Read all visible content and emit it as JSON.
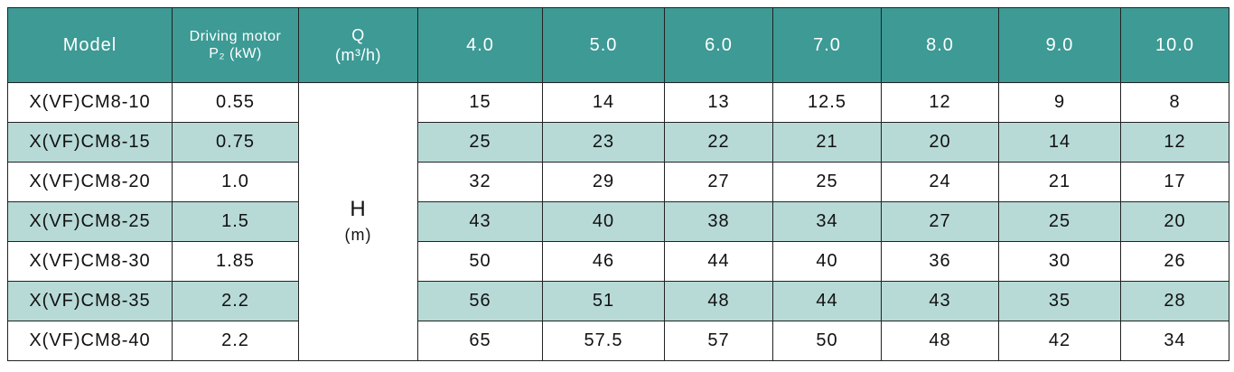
{
  "table": {
    "header": {
      "model": "Model",
      "motor": [
        "Driving motor",
        "P₂ (kW)"
      ],
      "flow": [
        "Q",
        "(m³/h)"
      ],
      "flows": [
        "4.0",
        "5.0",
        "6.0",
        "7.0",
        "8.0",
        "9.0",
        "10.0"
      ]
    },
    "head_label": [
      "H",
      "(m)"
    ],
    "rows": [
      {
        "model": "X(VF)CM8-10",
        "power": "0.55",
        "heads": [
          "15",
          "14",
          "13",
          "12.5",
          "12",
          "9",
          "8"
        ]
      },
      {
        "model": "X(VF)CM8-15",
        "power": "0.75",
        "heads": [
          "25",
          "23",
          "22",
          "21",
          "20",
          "14",
          "12"
        ]
      },
      {
        "model": "X(VF)CM8-20",
        "power": "1.0",
        "heads": [
          "32",
          "29",
          "27",
          "25",
          "24",
          "21",
          "17"
        ]
      },
      {
        "model": "X(VF)CM8-25",
        "power": "1.5",
        "heads": [
          "43",
          "40",
          "38",
          "34",
          "27",
          "25",
          "20"
        ]
      },
      {
        "model": "X(VF)CM8-30",
        "power": "1.85",
        "heads": [
          "50",
          "46",
          "44",
          "40",
          "36",
          "30",
          "26"
        ]
      },
      {
        "model": "X(VF)CM8-35",
        "power": "2.2",
        "heads": [
          "56",
          "51",
          "48",
          "44",
          "43",
          "35",
          "28"
        ]
      },
      {
        "model": "X(VF)CM8-40",
        "power": "2.2",
        "heads": [
          "65",
          "57.5",
          "57",
          "50",
          "48",
          "42",
          "34"
        ]
      }
    ]
  }
}
